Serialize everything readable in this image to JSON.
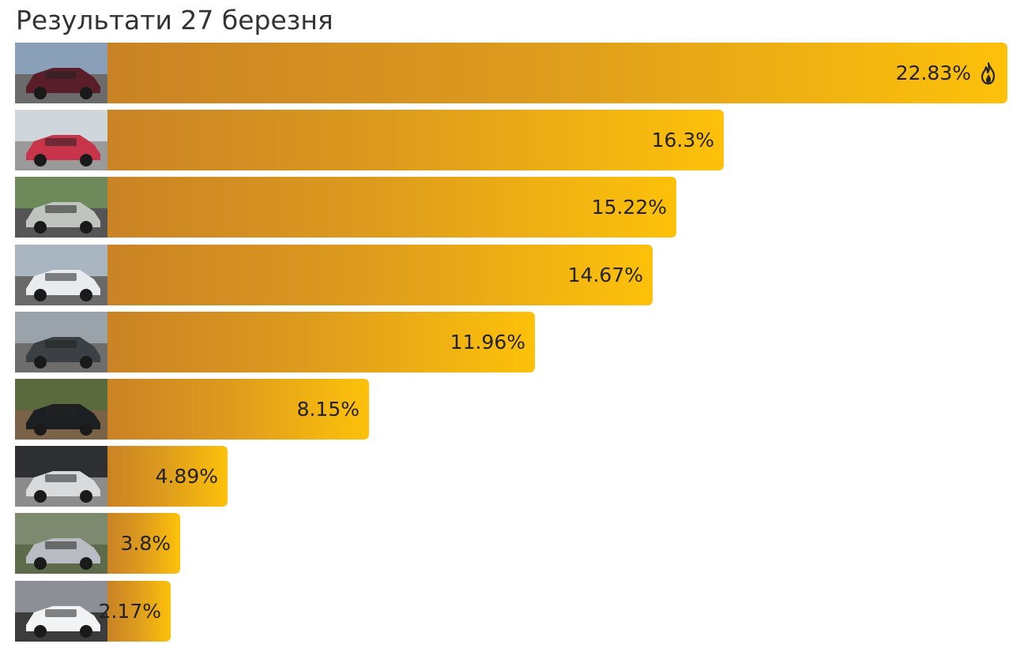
{
  "title": "Результати 27 березня",
  "chart_data": {
    "type": "bar",
    "orientation": "horizontal",
    "title": "Результати 27 березня",
    "xlim": [
      0,
      22.83
    ],
    "values": [
      22.83,
      16.3,
      15.22,
      14.67,
      11.96,
      8.15,
      4.89,
      3.8,
      2.17
    ],
    "labels": [
      "22.83%",
      "16.3%",
      "15.22%",
      "14.67%",
      "11.96%",
      "8.15%",
      "4.89%",
      "3.8%",
      "2.17%"
    ],
    "top_marker_icon": "fire-icon"
  },
  "thumbnails": [
    {
      "icon": "car-photo-icon",
      "palette": [
        "#8aa0b8",
        "#5a1e2a",
        "#6b6b6b"
      ]
    },
    {
      "icon": "car-photo-icon",
      "palette": [
        "#cfd6dc",
        "#c8344a",
        "#9a9a9a"
      ]
    },
    {
      "icon": "car-photo-icon",
      "palette": [
        "#6f8a5a",
        "#bfc4bf",
        "#555555"
      ]
    },
    {
      "icon": "car-photo-icon",
      "palette": [
        "#a9b6c2",
        "#e9ecee",
        "#6a6a6a"
      ]
    },
    {
      "icon": "car-photo-icon",
      "palette": [
        "#9aa3aa",
        "#3a4044",
        "#6d6d6d"
      ]
    },
    {
      "icon": "car-photo-icon",
      "palette": [
        "#5b6a3c",
        "#1c1f22",
        "#7a6248"
      ]
    },
    {
      "icon": "car-photo-icon",
      "palette": [
        "#2d2f31",
        "#d8dadb",
        "#8c8c8c"
      ]
    },
    {
      "icon": "car-photo-icon",
      "palette": [
        "#7d8a70",
        "#b9bcc2",
        "#5e6b4a"
      ]
    },
    {
      "icon": "car-photo-icon",
      "palette": [
        "#8c9096",
        "#f2f3f4",
        "#3c3c3c"
      ]
    }
  ],
  "colors": {
    "bar_start": "#c98325",
    "bar_end": "#fdc10a",
    "fire": "#222222"
  }
}
